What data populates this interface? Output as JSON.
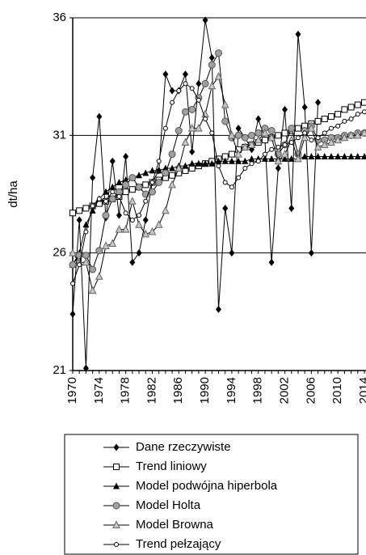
{
  "chart_data": {
    "type": "line",
    "y_label": "dt/ha",
    "x": [
      1970,
      1971,
      1972,
      1973,
      1974,
      1975,
      1976,
      1977,
      1978,
      1979,
      1980,
      1981,
      1982,
      1983,
      1984,
      1985,
      1986,
      1987,
      1988,
      1989,
      1990,
      1991,
      1992,
      1993,
      1994,
      1995,
      1996,
      1997,
      1998,
      1999,
      2000,
      2001,
      2002,
      2003,
      2004,
      2005,
      2006,
      2007,
      2008,
      2009,
      2010,
      2011,
      2012,
      2013,
      2014
    ],
    "xlim": [
      1970,
      2014
    ],
    "xticks": [
      1970,
      1974,
      1978,
      1982,
      1986,
      1990,
      1994,
      1998,
      2002,
      2006,
      2010,
      2014
    ],
    "ylim": [
      21,
      36
    ],
    "yticks": [
      21,
      26,
      31,
      36
    ],
    "grid": true,
    "legend": "bottom",
    "series": [
      {
        "name": "Dane rzeczywiste",
        "color": "#000000",
        "marker": "diamond",
        "values": [
          23.4,
          27.4,
          21.1,
          29.2,
          31.8,
          27.5,
          29.9,
          27.6,
          30.1,
          25.6,
          26.0,
          27.4,
          29.0,
          29.5,
          33.6,
          32.9,
          32.9,
          33.6,
          30.3,
          33.2,
          35.9,
          34.3,
          23.6,
          27.9,
          26.0,
          31.3,
          30.9,
          30.4,
          31.7,
          30.8,
          25.6,
          29.6,
          32.1,
          27.9,
          35.3,
          32.2,
          26.0,
          32.4,
          null,
          null,
          null,
          null,
          null,
          null,
          null
        ]
      },
      {
        "name": "Trend liniowy",
        "color": "#000000",
        "marker": "square",
        "values": [
          27.7,
          27.8,
          27.9,
          28.0,
          28.1,
          28.2,
          28.3,
          28.4,
          28.6,
          28.7,
          28.8,
          28.9,
          29.0,
          29.1,
          29.2,
          29.3,
          29.4,
          29.5,
          29.6,
          29.7,
          29.8,
          29.9,
          30.0,
          30.1,
          30.2,
          30.4,
          30.5,
          30.6,
          30.7,
          30.8,
          30.9,
          31.0,
          31.1,
          31.2,
          31.3,
          31.4,
          31.5,
          31.6,
          31.7,
          31.8,
          31.9,
          32.1,
          32.2,
          32.3,
          32.4
        ]
      },
      {
        "name": "Model podwójna hiperbola",
        "color": "#000000",
        "marker": "triangle",
        "values": [
          25.5,
          26.0,
          27.2,
          27.8,
          28.3,
          28.6,
          28.8,
          29.0,
          29.1,
          29.2,
          29.3,
          29.4,
          29.5,
          29.5,
          29.6,
          29.6,
          29.7,
          29.7,
          29.8,
          29.8,
          29.8,
          29.8,
          29.9,
          29.9,
          29.9,
          29.9,
          29.9,
          30.0,
          30.0,
          30.0,
          30.0,
          30.0,
          30.0,
          30.0,
          30.0,
          30.1,
          30.1,
          30.1,
          30.1,
          30.1,
          30.1,
          30.1,
          30.1,
          30.1,
          30.1
        ]
      },
      {
        "name": "Model Holta",
        "color": "#a0a0a0",
        "marker": "circle",
        "values": [
          25.5,
          25.9,
          25.9,
          25.3,
          26.1,
          27.6,
          28.3,
          28.6,
          28.9,
          29.2,
          28.8,
          28.5,
          28.6,
          29.0,
          29.4,
          30.2,
          31.2,
          32.0,
          32.1,
          32.6,
          33.2,
          34.0,
          34.5,
          31.6,
          30.9,
          31.0,
          30.9,
          31.0,
          31.1,
          31.3,
          31.2,
          30.2,
          30.6,
          31.3,
          30.2,
          31.2,
          31.4,
          30.8,
          30.8,
          30.9,
          30.9,
          31.0,
          31.0,
          31.1,
          31.1
        ]
      },
      {
        "name": "Model Browna",
        "color": "#b0b0b0",
        "marker": "triangle-open",
        "values": [
          26.0,
          25.6,
          25.6,
          24.4,
          25.0,
          26.3,
          26.4,
          27.0,
          27.0,
          28.2,
          27.2,
          26.8,
          26.9,
          27.2,
          27.8,
          28.9,
          29.6,
          30.7,
          31.3,
          31.3,
          31.9,
          33.1,
          33.5,
          32.3,
          31.0,
          30.2,
          30.5,
          30.6,
          30.8,
          31.1,
          30.9,
          29.9,
          30.2,
          30.8,
          30.0,
          30.9,
          31.3,
          30.5,
          30.6,
          30.7,
          30.8,
          30.9,
          31.0,
          31.0,
          31.1
        ]
      },
      {
        "name": "Trend pełzający",
        "color": "#000000",
        "marker": "circle-open",
        "values": [
          24.7,
          25.5,
          26.9,
          28.0,
          28.3,
          28.2,
          28.6,
          28.4,
          27.7,
          27.4,
          27.6,
          28.2,
          29.0,
          29.9,
          31.3,
          32.4,
          32.9,
          33.2,
          33.0,
          32.5,
          31.7,
          31.1,
          29.7,
          29.0,
          28.8,
          29.2,
          29.6,
          29.8,
          29.9,
          30.2,
          30.4,
          30.5,
          30.6,
          30.7,
          30.9,
          31.1,
          30.8,
          30.9,
          31.1,
          31.3,
          31.4,
          31.6,
          31.7,
          31.9,
          32.0
        ]
      }
    ]
  }
}
